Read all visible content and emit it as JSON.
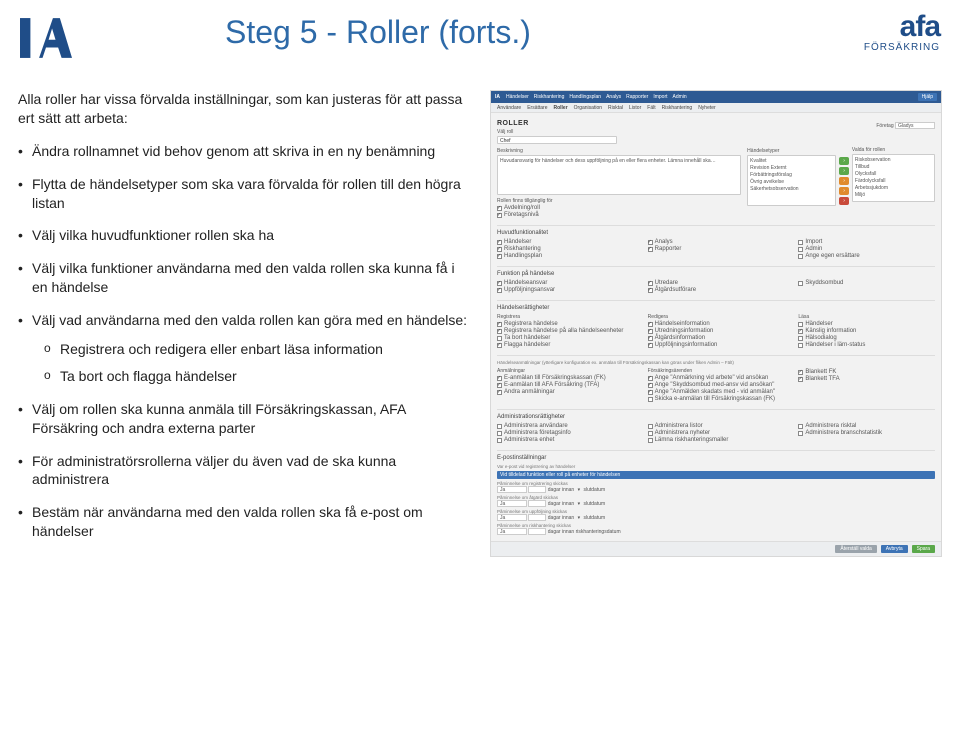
{
  "title": "Steg 5 - Roller (forts.)",
  "logo_right": {
    "main": "afa",
    "sub": "FÖRSÄKRING"
  },
  "intro": "Alla roller har vissa förvalda inställningar, som kan justeras för att passa ert sätt att arbeta:",
  "bullets": [
    "Ändra rollnamnet vid behov genom att skriva in en ny benämning",
    "Flytta de händelsetyper som ska vara förvalda för rollen till den högra listan",
    "Välj vilka huvudfunktioner rollen ska ha",
    "Välj vilka funktioner användarna med den valda rollen ska kunna få i en händelse",
    "Välj vad användarna med den valda rollen kan göra med en händelse:",
    "Välj om rollen ska kunna anmäla till Försäkrings­kassan, AFA Försäkring och andra externa parter",
    "För administratörsrollerna väljer du även vad de ska kunna administrera",
    "Bestäm när användarna med den valda rollen ska få e-post om händelser"
  ],
  "sub_bullets": [
    "Registrera och redigera eller enbart läsa information",
    "Ta bort och flagga händelser"
  ],
  "ss": {
    "topnav": [
      "Händelser",
      "Riskhantering",
      "Handlingsplan",
      "Analys",
      "Rapporter",
      "Import",
      "Admin"
    ],
    "help": "Hjälp",
    "subnav": [
      "Användare",
      "Ersättare",
      "Roller",
      "Organisation",
      "Risktal",
      "Listor",
      "Fält",
      "Riskhantering",
      "Nyheter"
    ],
    "subnav_active_index": 2,
    "heading": "ROLLER",
    "company_label": "Företag",
    "company_value": "Gladys",
    "role_label": "Välj roll",
    "role_value": "Chef",
    "desc_label": "Beskrivning",
    "desc_value": "Huvudansvarig för händelser och dess uppföljning på en eller flera enheter. Lämna innehåll ska…",
    "event_types_label": "Händelsetyper",
    "event_types_left": [
      "Kvalitet",
      "Revision Externt",
      "Förbättringsförslag",
      "Övrig avvikelse",
      "Säkerhetsobservation"
    ],
    "event_types_pills": [
      {
        "cls": "green"
      },
      {
        "cls": "green"
      },
      {
        "cls": "orange"
      },
      {
        "cls": "orange"
      },
      {
        "cls": "red"
      }
    ],
    "event_types_right_label": "Valda för rollen",
    "event_types_right": [
      "Riskobservation",
      "Tillbud",
      "Olycksfall",
      "Färdolycksfall",
      "Arbetssjukdom",
      "Miljö"
    ],
    "roll_filter_label": "Rollen finns tillgänglig för",
    "roll_filter": [
      {
        "label": "Avdelning/roll",
        "checked": true
      },
      {
        "label": "Företagsnivå",
        "checked": true
      }
    ],
    "sec_huvud": "Huvudfunktionalitet",
    "huvud_cols": [
      [
        {
          "l": "Händelser",
          "c": true
        },
        {
          "l": "Riskhantering",
          "c": true
        },
        {
          "l": "Handlingsplan",
          "c": true
        }
      ],
      [
        {
          "l": "Analys",
          "c": true
        },
        {
          "l": "Rapporter",
          "c": true
        }
      ],
      [
        {
          "l": "Import",
          "c": false
        },
        {
          "l": "Admin",
          "c": false
        },
        {
          "l": "Ange egen ersättare",
          "c": false
        }
      ]
    ],
    "sec_funk": "Funktion på händelse",
    "funk_cols": [
      [
        {
          "l": "Händelseansvar",
          "c": true
        },
        {
          "l": "Uppföljningsansvar",
          "c": true
        }
      ],
      [
        {
          "l": "Utredare",
          "c": true
        },
        {
          "l": "Åtgärdsutförare",
          "c": true
        }
      ],
      [
        {
          "l": "Skyddsombud",
          "c": false
        }
      ]
    ],
    "sec_ratt": "Händelserättigheter",
    "ratt_cols": [
      {
        "h": "Registrera",
        "items": [
          {
            "l": "Registrera händelse",
            "c": true
          },
          {
            "l": "Registrera händelse på alla händelseenheter",
            "c": true
          },
          {
            "l": "Ta bort händelser",
            "c": false
          },
          {
            "l": "Flagga händelser",
            "c": true
          }
        ]
      },
      {
        "h": "Redigera",
        "items": [
          {
            "l": "Händelseinformation",
            "c": true
          },
          {
            "l": "Utredningsinformation",
            "c": true
          },
          {
            "l": "Åtgärdsinformation",
            "c": true
          },
          {
            "l": "Uppföljningsinformation",
            "c": true
          }
        ]
      },
      {
        "h": "Läsa",
        "items": [
          {
            "l": "Händelser",
            "c": false
          },
          {
            "l": "Känslig information",
            "c": true
          },
          {
            "l": "Hälsodialog",
            "c": false
          },
          {
            "l": "Händelser i lärn-status",
            "c": false
          }
        ]
      }
    ],
    "sec_anm": "Händelseanmälningar (ytterligare konfiguration ex. anmälan till Försäkringskassan kan göras under fliken Admin – Fält)",
    "anm_cols": [
      {
        "h": "Anmälningar",
        "items": [
          {
            "l": "E-anmälan till Försäkringskassan (FK)",
            "c": true
          },
          {
            "l": "E-anmälan till AFA Försäkring (TFA)",
            "c": true
          },
          {
            "l": "Andra anmälningar",
            "c": true
          }
        ]
      },
      {
        "h": "Försäkringsärenden",
        "items": [
          {
            "l": "Ange \"Anmärkning vid arbete\" vid ansökan",
            "c": true
          },
          {
            "l": "Ange \"Skyddsombud med-ansv vid ansökan\"",
            "c": true
          },
          {
            "l": "Ange \"Anmälden skadats med - vid anmälan\"",
            "c": true
          },
          {
            "l": "Skicka e-anmälan till Försäkringskassan (FK)",
            "c": false
          }
        ]
      },
      {
        "h": "",
        "items": [
          {
            "l": "Blankett FK",
            "c": true
          },
          {
            "l": "Blankett TFA",
            "c": true
          }
        ]
      }
    ],
    "sec_admin": "Administrationsrättigheter",
    "admin_cols": [
      [
        {
          "l": "Administrera användare",
          "c": false
        },
        {
          "l": "Administrera företagsinfo",
          "c": false
        },
        {
          "l": "Administrera enhet",
          "c": false
        }
      ],
      [
        {
          "l": "Administrera listor",
          "c": false
        },
        {
          "l": "Administrera nyheter",
          "c": false
        },
        {
          "l": "Lämna riskhanteringsmaller",
          "c": false
        }
      ],
      [
        {
          "l": "Administrera risktal",
          "c": false
        },
        {
          "l": "Administrera branschstatistik",
          "c": false
        }
      ]
    ],
    "sec_epost": "E-postinställningar",
    "epost_sub": "Var e-post vid registrering av händelser",
    "epost_note": "Vid tilldelad funktion eller roll på enheter för händelsen",
    "rows_label_1": "Påminnelse om registrering skickas",
    "rows_label_2": "Påminnelse om åtgärd skickas",
    "rows_label_3": "Påminnelse om uppföljning skickas",
    "rows_label_4": "Påminnelse om riskhantering skickas",
    "dagar": "dagar",
    "innan": "innan",
    "slutdatum": "slutdatum",
    "ja": "Ja",
    "innan_risk": "innan riskhanteringsdatum",
    "buttons": [
      "Återställ valda",
      "Avbryta",
      "Spara"
    ]
  }
}
